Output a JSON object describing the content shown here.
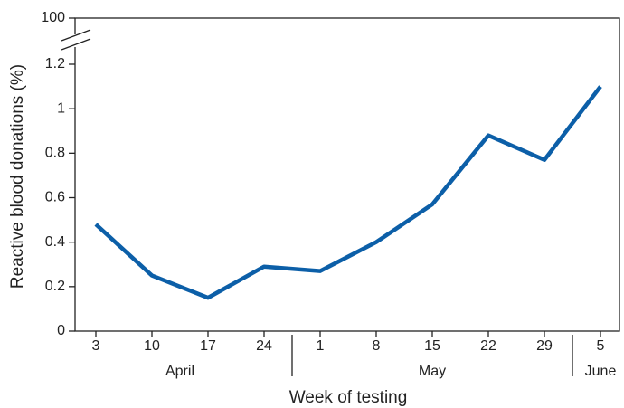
{
  "chart_data": {
    "type": "line",
    "x_label": "Week of testing",
    "y_label": "Reactive blood donations (%)",
    "categories": [
      "3",
      "10",
      "17",
      "24",
      "1",
      "8",
      "15",
      "22",
      "29",
      "5"
    ],
    "category_groups": [
      {
        "label": "April",
        "count": 4
      },
      {
        "label": "May",
        "count": 5
      },
      {
        "label": "June",
        "count": 1
      }
    ],
    "values": [
      0.48,
      0.25,
      0.15,
      0.29,
      0.27,
      0.4,
      0.57,
      0.88,
      0.77,
      1.1
    ],
    "color": "#0c5fa8",
    "ylim": [
      0,
      100
    ],
    "yticks": [
      0,
      0.2,
      0.4,
      0.6,
      0.8,
      1.0,
      1.2,
      100
    ],
    "y_break": true,
    "grid": false
  }
}
